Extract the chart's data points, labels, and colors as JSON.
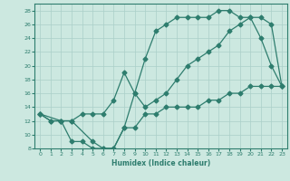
{
  "xlabel": "Humidex (Indice chaleur)",
  "bg_color": "#cce8e0",
  "line_color": "#2e7d6e",
  "grid_color": "#aacfc8",
  "xlim": [
    -0.5,
    23.5
  ],
  "ylim": [
    8,
    29
  ],
  "xticks": [
    0,
    1,
    2,
    3,
    4,
    5,
    6,
    7,
    8,
    9,
    10,
    11,
    12,
    13,
    14,
    15,
    16,
    17,
    18,
    19,
    20,
    21,
    22,
    23
  ],
  "yticks": [
    8,
    10,
    12,
    14,
    16,
    18,
    20,
    22,
    24,
    26,
    28
  ],
  "line1_x": [
    0,
    1,
    2,
    3,
    4,
    5,
    6,
    7,
    8,
    9,
    10,
    11,
    12,
    13,
    14,
    15,
    16,
    17,
    18,
    19,
    20,
    21,
    22,
    23
  ],
  "line1_y": [
    13,
    12,
    12,
    9,
    9,
    8,
    8,
    8,
    11,
    11,
    13,
    13,
    14,
    14,
    14,
    14,
    15,
    15,
    16,
    16,
    17,
    17,
    17,
    17
  ],
  "line2_x": [
    0,
    1,
    2,
    3,
    5,
    6,
    7,
    8,
    9,
    10,
    11,
    12,
    13,
    14,
    15,
    16,
    17,
    18,
    19,
    20,
    21,
    22,
    23
  ],
  "line2_y": [
    13,
    12,
    12,
    12,
    9,
    8,
    8,
    11,
    16,
    21,
    25,
    26,
    27,
    27,
    27,
    27,
    28,
    28,
    27,
    27,
    24,
    20,
    17
  ],
  "line3_x": [
    0,
    2,
    3,
    4,
    5,
    6,
    7,
    8,
    9,
    10,
    11,
    12,
    13,
    14,
    15,
    16,
    17,
    18,
    19,
    20,
    21,
    22,
    23
  ],
  "line3_y": [
    13,
    12,
    12,
    13,
    13,
    13,
    15,
    19,
    16,
    14,
    15,
    16,
    18,
    20,
    21,
    22,
    23,
    25,
    26,
    27,
    27,
    26,
    17
  ]
}
